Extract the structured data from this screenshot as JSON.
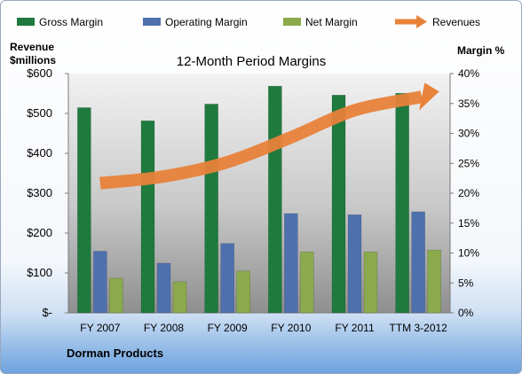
{
  "chart_data": {
    "type": "bar",
    "title": "12-Month Period Margins",
    "categories": [
      "FY 2007",
      "FY 2008",
      "FY 2009",
      "FY 2010",
      "FY 2011",
      "TTM 3-2012"
    ],
    "series": [
      {
        "name": "Gross Margin",
        "axis": "right",
        "color": "#1f7a3e",
        "values": [
          34.3,
          32.1,
          34.9,
          37.9,
          36.4,
          36.7
        ]
      },
      {
        "name": "Operating Margin",
        "axis": "right",
        "color": "#4e71ae",
        "values": [
          10.3,
          8.3,
          11.6,
          16.6,
          16.4,
          16.9
        ]
      },
      {
        "name": "Net Margin",
        "axis": "right",
        "color": "#8aaa4c",
        "values": [
          5.8,
          5.2,
          7.0,
          10.2,
          10.2,
          10.5
        ]
      }
    ],
    "line_series": {
      "name": "Revenues",
      "axis": "left",
      "color": "#e8823a",
      "values": [
        325,
        342,
        378,
        440,
        508,
        540
      ]
    },
    "left_axis": {
      "label_line1": "Revenue",
      "label_line2": "$millions",
      "ylim": [
        0,
        600
      ],
      "ticks": [
        "$-",
        "$100",
        "$200",
        "$300",
        "$400",
        "$500",
        "$600"
      ]
    },
    "right_axis": {
      "label": "Margin %",
      "ylim": [
        0,
        40
      ],
      "ticks": [
        "0%",
        "5%",
        "10%",
        "15%",
        "20%",
        "25%",
        "30%",
        "35%",
        "40%"
      ]
    },
    "legend_position": "top",
    "grid": false,
    "footer": "Dorman Products"
  }
}
